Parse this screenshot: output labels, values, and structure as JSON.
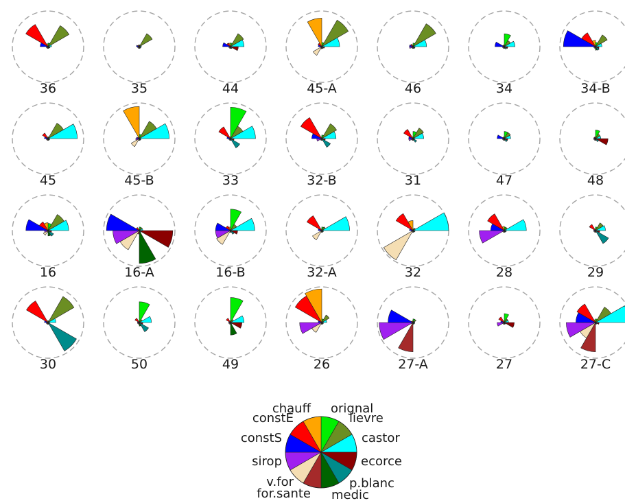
{
  "chart_data": {
    "type": "star-glyph",
    "title": "",
    "variables": [
      "orignal",
      "lievre",
      "castor",
      "ecorce",
      "p.blanc",
      "medic",
      "for.sante",
      "v.for",
      "sirop",
      "constS",
      "constE",
      "chauff"
    ],
    "colors": [
      "#00ee00",
      "#6b8e23",
      "#00ffff",
      "#8b0000",
      "#008b8b",
      "#006400",
      "#a52a2a",
      "#f5deb3",
      "#a020f0",
      "#0000ff",
      "#ff0000",
      "#ffa500"
    ],
    "scale_max": 1.0,
    "stations": [
      {
        "name": "36",
        "values": [
          0.1,
          0.68,
          0.1,
          0.06,
          0.05,
          0.05,
          0.05,
          0.05,
          0.05,
          0.22,
          0.72,
          0.08
        ]
      },
      {
        "name": "35",
        "values": [
          0.05,
          0.42,
          0.06,
          0.05,
          0.05,
          0.05,
          0.05,
          0.05,
          0.05,
          0.08,
          0.05,
          0.05
        ]
      },
      {
        "name": "44",
        "values": [
          0.1,
          0.42,
          0.38,
          0.22,
          0.06,
          0.05,
          0.05,
          0.05,
          0.05,
          0.22,
          0.12,
          0.1
        ]
      },
      {
        "name": "45-A",
        "values": [
          0.12,
          0.86,
          0.5,
          0.08,
          0.06,
          0.05,
          0.06,
          0.28,
          0.05,
          0.1,
          0.12,
          0.8
        ]
      },
      {
        "name": "46",
        "values": [
          0.1,
          0.74,
          0.38,
          0.06,
          0.06,
          0.05,
          0.05,
          0.05,
          0.1,
          0.1,
          0.08,
          0.05
        ]
      },
      {
        "name": "34",
        "values": [
          0.36,
          0.2,
          0.3,
          0.1,
          0.08,
          0.05,
          0.05,
          0.05,
          0.05,
          0.26,
          0.05,
          0.05
        ]
      },
      {
        "name": "34-B",
        "values": [
          0.12,
          0.38,
          0.18,
          0.1,
          0.12,
          0.1,
          0.05,
          0.05,
          0.05,
          0.9,
          0.45,
          0.18
        ]
      },
      {
        "name": "45",
        "values": [
          0.05,
          0.5,
          0.82,
          0.05,
          0.05,
          0.05,
          0.05,
          0.05,
          0.05,
          0.1,
          0.18,
          0.05
        ]
      },
      {
        "name": "45-B",
        "values": [
          0.12,
          0.56,
          0.84,
          0.05,
          0.05,
          0.05,
          0.05,
          0.26,
          0.1,
          0.08,
          0.05,
          0.9
        ]
      },
      {
        "name": "33",
        "values": [
          0.88,
          0.4,
          0.7,
          0.1,
          0.3,
          0.05,
          0.05,
          0.05,
          0.05,
          0.1,
          0.38,
          0.05
        ]
      },
      {
        "name": "32-B",
        "values": [
          0.1,
          0.48,
          0.4,
          0.1,
          0.28,
          0.05,
          0.05,
          0.05,
          0.14,
          0.28,
          0.68,
          0.05
        ]
      },
      {
        "name": "31",
        "values": [
          0.2,
          0.34,
          0.3,
          0.05,
          0.12,
          0.05,
          0.05,
          0.05,
          0.12,
          0.12,
          0.3,
          0.05
        ]
      },
      {
        "name": "47",
        "values": [
          0.2,
          0.2,
          0.18,
          0.1,
          0.1,
          0.05,
          0.05,
          0.05,
          0.05,
          0.2,
          0.05,
          0.05
        ]
      },
      {
        "name": "48",
        "values": [
          0.24,
          0.15,
          0.15,
          0.35,
          0.1,
          0.05,
          0.05,
          0.05,
          0.05,
          0.05,
          0.05,
          0.05
        ]
      },
      {
        "name": "16",
        "values": [
          0.2,
          0.52,
          0.58,
          0.1,
          0.18,
          0.15,
          0.05,
          0.15,
          0.1,
          0.62,
          0.28,
          0.22
        ]
      },
      {
        "name": "16-A",
        "values": [
          0.1,
          0.1,
          0.1,
          0.94,
          0.06,
          0.92,
          0.1,
          0.62,
          0.74,
          0.92,
          0.1,
          0.05
        ]
      },
      {
        "name": "16-B",
        "values": [
          0.6,
          0.2,
          0.68,
          0.2,
          0.12,
          0.05,
          0.05,
          0.45,
          0.42,
          0.42,
          0.15,
          0.1
        ]
      },
      {
        "name": "32-A",
        "values": [
          0.1,
          0.12,
          0.78,
          0.05,
          0.05,
          0.05,
          0.05,
          0.3,
          0.05,
          0.1,
          0.48,
          0.05
        ]
      },
      {
        "name": "32",
        "values": [
          0.05,
          0.08,
          1.0,
          0.06,
          0.05,
          0.05,
          0.05,
          0.95,
          0.05,
          0.1,
          0.55,
          0.28
        ]
      },
      {
        "name": "28",
        "values": [
          0.1,
          0.1,
          0.62,
          0.06,
          0.05,
          0.05,
          0.05,
          0.05,
          0.7,
          0.38,
          0.54,
          0.12
        ]
      },
      {
        "name": "29",
        "values": [
          0.1,
          0.25,
          0.28,
          0.12,
          0.42,
          0.05,
          0.05,
          0.05,
          0.05,
          0.05,
          0.2,
          0.05
        ]
      },
      {
        "name": "30",
        "values": [
          0.05,
          0.84,
          0.22,
          0.05,
          0.92,
          0.05,
          0.05,
          0.05,
          0.05,
          0.1,
          0.7,
          0.05
        ]
      },
      {
        "name": "50",
        "values": [
          0.58,
          0.1,
          0.34,
          0.1,
          0.3,
          0.1,
          0.05,
          0.05,
          0.05,
          0.05,
          0.14,
          0.05
        ]
      },
      {
        "name": "49",
        "values": [
          0.7,
          0.1,
          0.38,
          0.32,
          0.05,
          0.35,
          0.05,
          0.05,
          0.05,
          0.05,
          0.14,
          0.05
        ]
      },
      {
        "name": "26",
        "values": [
          0.1,
          0.24,
          0.14,
          0.05,
          0.05,
          0.05,
          0.05,
          0.32,
          0.62,
          0.1,
          0.86,
          0.94
        ]
      },
      {
        "name": "27-A",
        "values": [
          0.1,
          0.1,
          0.05,
          0.05,
          0.05,
          0.05,
          0.82,
          0.05,
          0.95,
          0.7,
          0.05,
          0.05
        ]
      },
      {
        "name": "27",
        "values": [
          0.25,
          0.12,
          0.12,
          0.28,
          0.05,
          0.05,
          0.05,
          0.05,
          0.2,
          0.1,
          0.18,
          0.05
        ]
      },
      {
        "name": "27-C",
        "values": [
          0.1,
          0.5,
          0.94,
          0.1,
          0.05,
          0.05,
          0.82,
          0.5,
          0.82,
          0.55,
          0.6,
          0.08
        ]
      }
    ],
    "legend_labels": [
      "orignal",
      "lievre",
      "castor",
      "ecorce",
      "p.blanc",
      "medic",
      "for.sante",
      "v.for",
      "sirop",
      "constS",
      "constE",
      "chauff"
    ]
  }
}
